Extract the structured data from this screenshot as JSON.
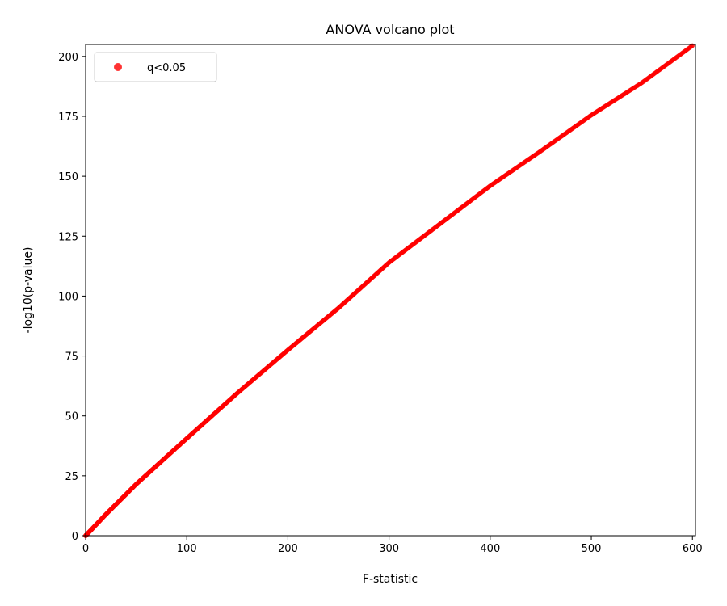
{
  "chart_data": {
    "type": "scatter",
    "title": "ANOVA volcano plot",
    "xlabel": "F-statistic",
    "ylabel": "-log10(p-value)",
    "xlim": [
      0,
      603
    ],
    "ylim": [
      0,
      205
    ],
    "xticks": [
      0,
      100,
      200,
      300,
      400,
      500,
      600
    ],
    "yticks": [
      0,
      25,
      50,
      75,
      100,
      125,
      150,
      175,
      200
    ],
    "grid": false,
    "legend_position": "top-left",
    "series": [
      {
        "name": "q<0.05",
        "color": "#ff0000",
        "curve_points": [
          {
            "x": 0,
            "y": 0
          },
          {
            "x": 20,
            "y": 8.9
          },
          {
            "x": 50,
            "y": 21.5
          },
          {
            "x": 100,
            "y": 40.6
          },
          {
            "x": 150,
            "y": 59.5
          },
          {
            "x": 200,
            "y": 77.5
          },
          {
            "x": 250,
            "y": 95.0
          },
          {
            "x": 300,
            "y": 114.0
          },
          {
            "x": 350,
            "y": 130.0
          },
          {
            "x": 400,
            "y": 146.0
          },
          {
            "x": 450,
            "y": 160.5
          },
          {
            "x": 500,
            "y": 175.5
          },
          {
            "x": 550,
            "y": 189.0
          },
          {
            "x": 600,
            "y": 204.5
          }
        ],
        "n_points": 900
      }
    ]
  }
}
